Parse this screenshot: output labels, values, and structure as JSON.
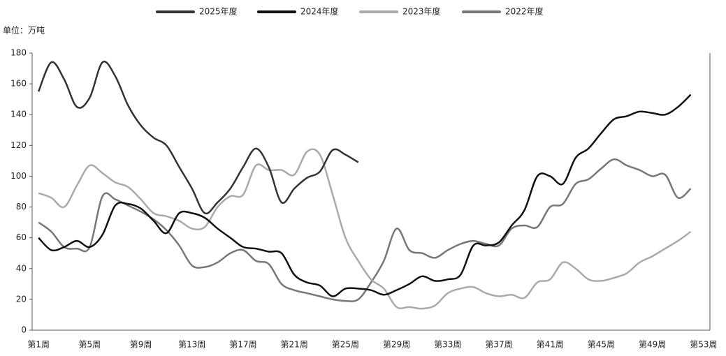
{
  "chart_data": {
    "type": "line",
    "unit_label": "单位：万吨",
    "categories": [
      "第1周",
      null,
      null,
      null,
      "第5周",
      null,
      null,
      null,
      "第9周",
      null,
      null,
      null,
      "第13周",
      null,
      null,
      null,
      "第17周",
      null,
      null,
      null,
      "第21周",
      null,
      null,
      null,
      "第25周",
      null,
      null,
      null,
      "第29周",
      null,
      null,
      null,
      "第33周",
      null,
      null,
      null,
      "第37周",
      null,
      null,
      null,
      "第41周",
      null,
      null,
      null,
      "第45周",
      null,
      null,
      null,
      "第49周",
      null,
      null,
      null,
      "第53周"
    ],
    "ylim": [
      0,
      180
    ],
    "yticks": [
      0,
      20,
      40,
      60,
      80,
      100,
      120,
      140,
      160,
      180
    ],
    "series": [
      {
        "name": "2025年度",
        "color": "#333333",
        "values": [
          155,
          174,
          163,
          145,
          151,
          174,
          165,
          146,
          133,
          125,
          120,
          106,
          92,
          76,
          83,
          92,
          106,
          118,
          106,
          83,
          92,
          99,
          103,
          117,
          114,
          109,
          null,
          null,
          null,
          null,
          null,
          null,
          null,
          null,
          null,
          null,
          null,
          null,
          null,
          null,
          null,
          null,
          null,
          null,
          null,
          null,
          null,
          null,
          null,
          null,
          null,
          null,
          null
        ]
      },
      {
        "name": "2024年度",
        "color": "#111111",
        "values": [
          60,
          52,
          54,
          58,
          54,
          62,
          81,
          82,
          79,
          71,
          63,
          76,
          76,
          73,
          66,
          60,
          54,
          53,
          51,
          50,
          36,
          31,
          29,
          22,
          27,
          27,
          26,
          23,
          26,
          30,
          35,
          32,
          33,
          36,
          55,
          55,
          57,
          68,
          78,
          100,
          100,
          95,
          112,
          118,
          128,
          137,
          139,
          142,
          141,
          140,
          145,
          153,
          null
        ]
      },
      {
        "name": "2023年度",
        "color": "#aaaaaa",
        "values": [
          89,
          86,
          80,
          94,
          107,
          102,
          96,
          93,
          85,
          76,
          74,
          71,
          66,
          67,
          80,
          87,
          88,
          107,
          104,
          104,
          101,
          116,
          114,
          88,
          60,
          45,
          33,
          27,
          15,
          15,
          14,
          16,
          24,
          27,
          28,
          24,
          22,
          23,
          21,
          31,
          33,
          44,
          40,
          33,
          32,
          34,
          37,
          44,
          48,
          53,
          58,
          64,
          null
        ]
      },
      {
        "name": "2022年度",
        "color": "#777777",
        "values": [
          70,
          64,
          54,
          53,
          54,
          87,
          85,
          81,
          77,
          72,
          65,
          55,
          42,
          41,
          44,
          50,
          52,
          45,
          43,
          30,
          26,
          24,
          22,
          20,
          19,
          20,
          31,
          45,
          66,
          52,
          50,
          47,
          52,
          56,
          58,
          56,
          55,
          66,
          68,
          67,
          80,
          82,
          95,
          98,
          105,
          111,
          107,
          104,
          100,
          101,
          86,
          92,
          null
        ]
      }
    ]
  }
}
